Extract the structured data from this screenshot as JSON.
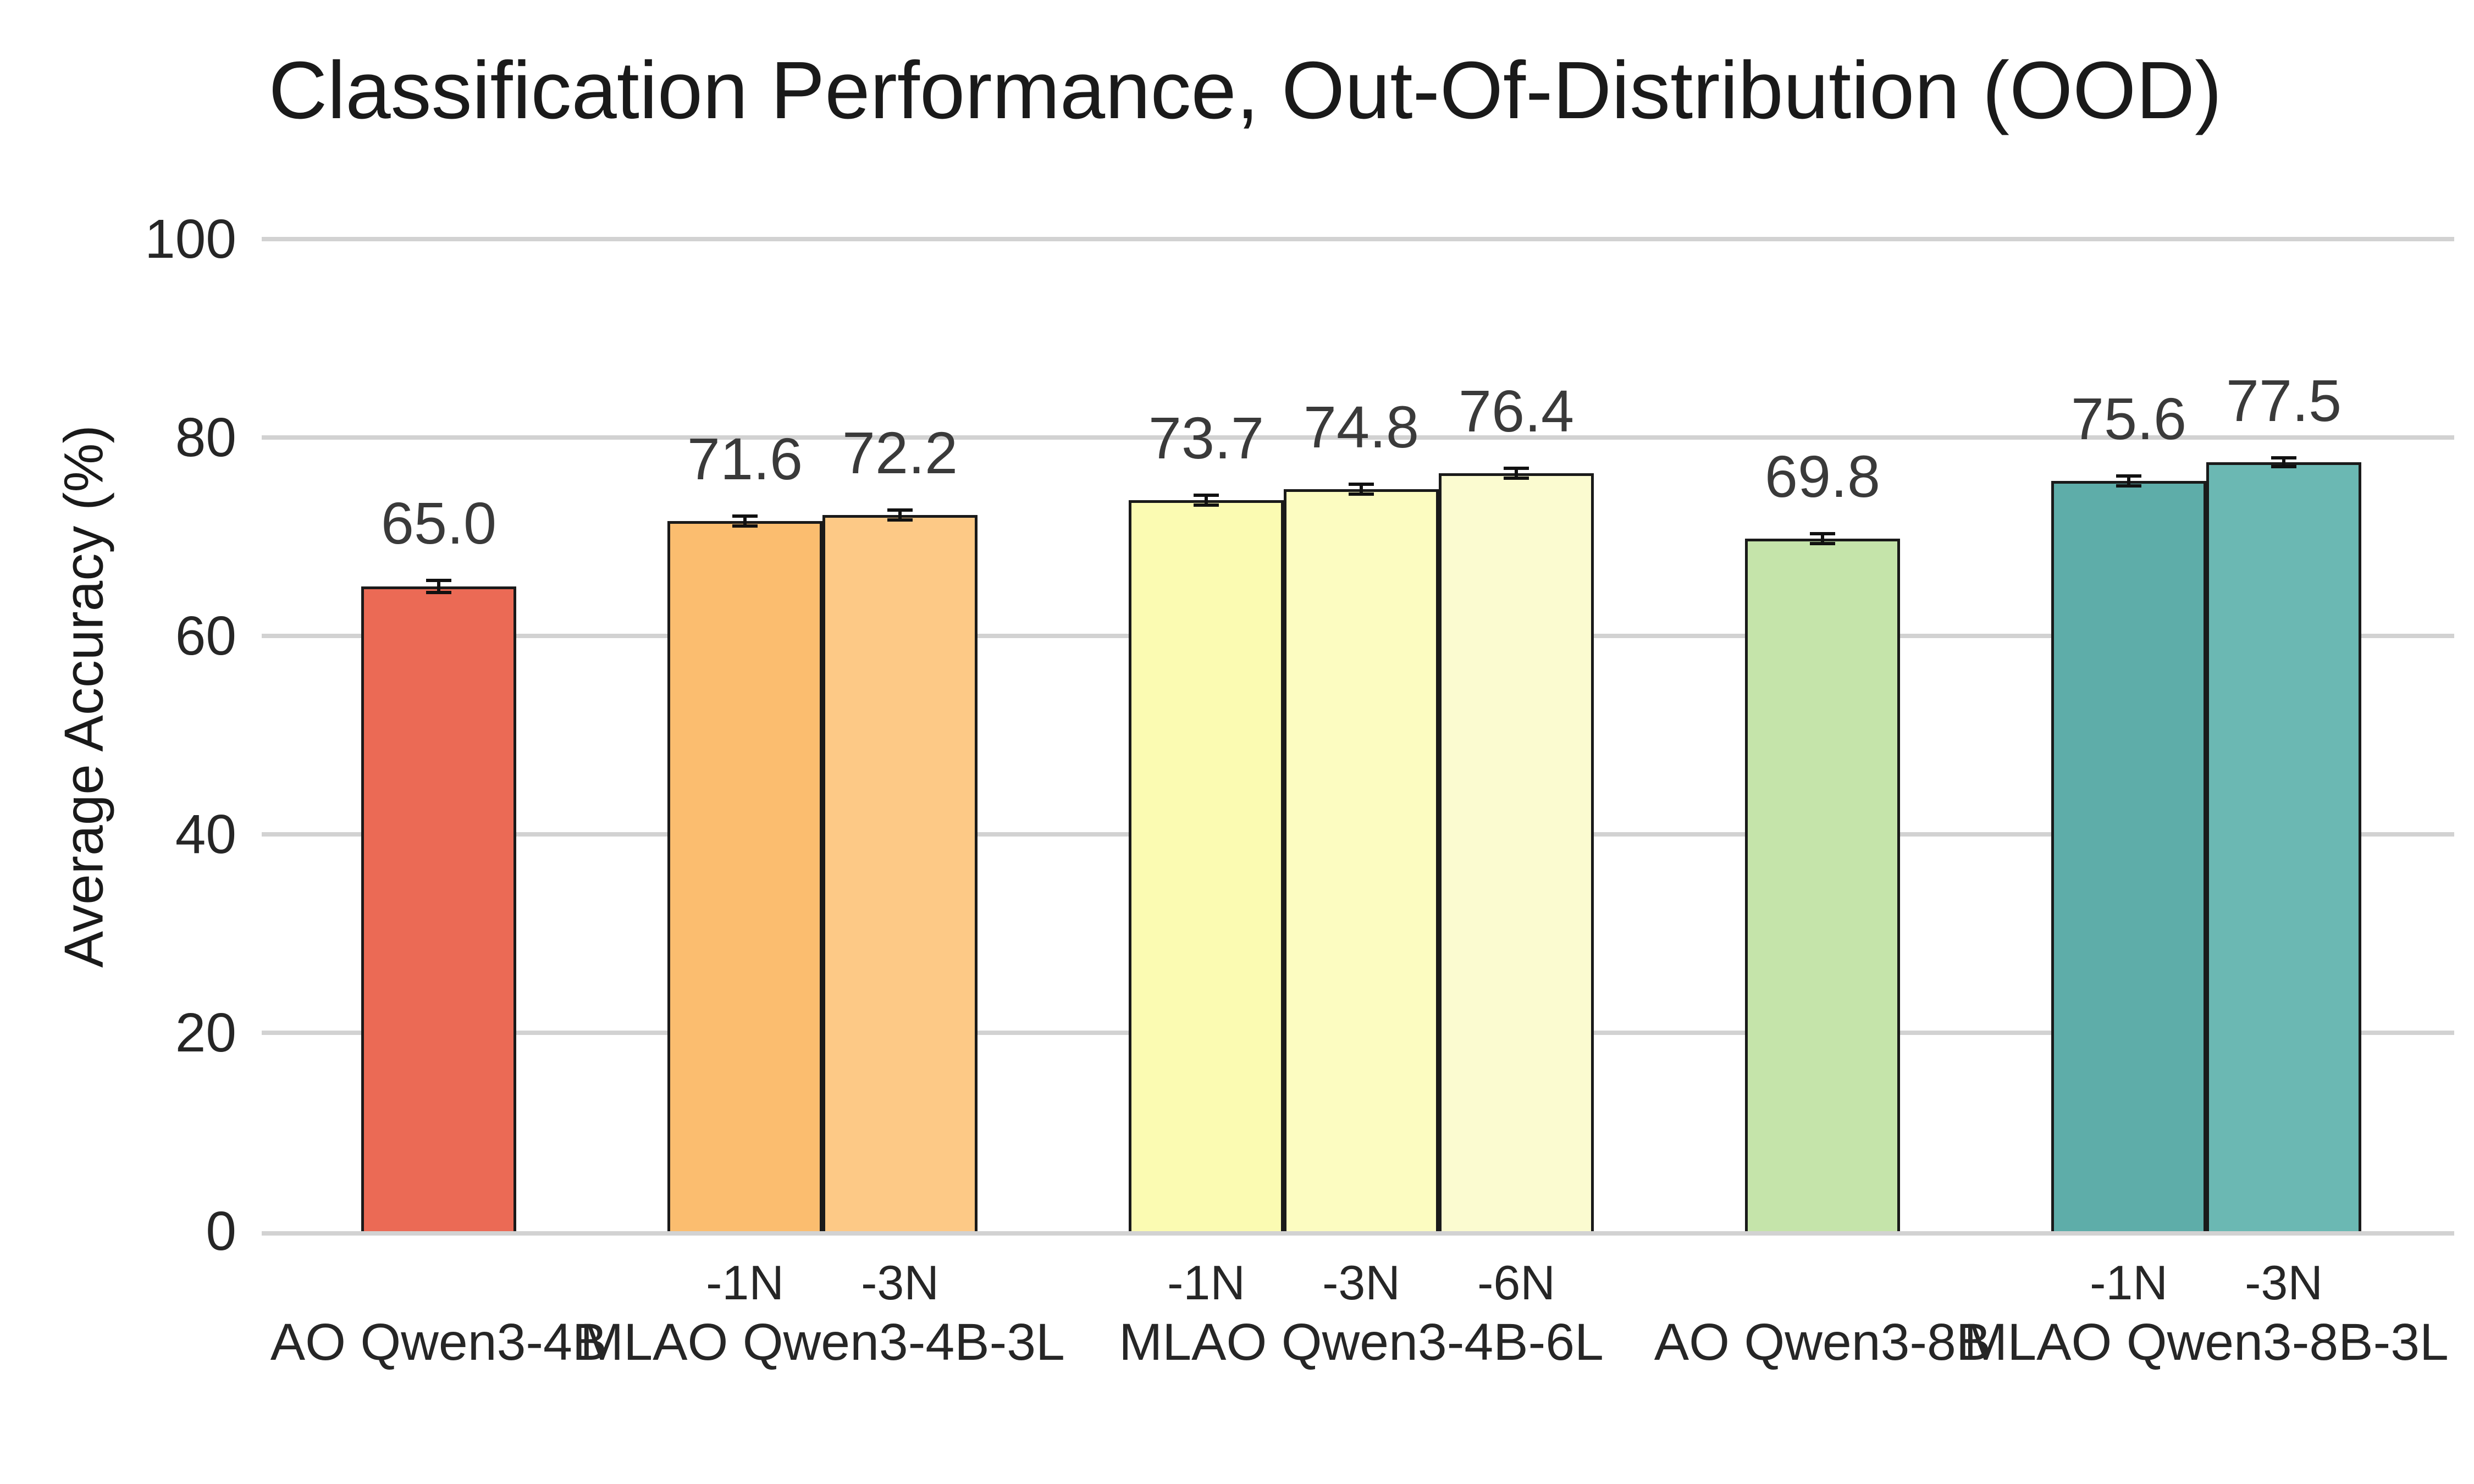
{
  "title": "Classification Performance, Out-Of-Distribution (OOD)",
  "chart_data": {
    "type": "bar",
    "title": "Classification Performance, Out-Of-Distribution (OOD)",
    "xlabel": "",
    "ylabel": "Average Accuracy (%)",
    "ylim": [
      0,
      100
    ],
    "yticks": [
      0,
      20,
      40,
      60,
      80,
      100
    ],
    "grid": "horizontal",
    "grid_color": "#d2d2d2",
    "bar_edge_color": "#1a1a1a",
    "error_bar_color": "#111111",
    "legend": "none",
    "groups": [
      {
        "label": "AO Qwen3-4B",
        "bars": [
          {
            "tick": "",
            "value": 65.0,
            "value_label": "65.0",
            "err": 0.6,
            "color": "#EB6A55"
          }
        ]
      },
      {
        "label": "MLAO Qwen3-4B-3L",
        "bars": [
          {
            "tick": "-1N",
            "value": 71.6,
            "value_label": "71.6",
            "err": 0.5,
            "color": "#FBBD6F"
          },
          {
            "tick": "-3N",
            "value": 72.2,
            "value_label": "72.2",
            "err": 0.5,
            "color": "#FDC986"
          }
        ]
      },
      {
        "label": "MLAO Qwen3-4B-6L",
        "bars": [
          {
            "tick": "-1N",
            "value": 73.7,
            "value_label": "73.7",
            "err": 0.5,
            "color": "#FBFBB2"
          },
          {
            "tick": "-3N",
            "value": 74.8,
            "value_label": "74.8",
            "err": 0.5,
            "color": "#FCFCC1"
          },
          {
            "tick": "-6N",
            "value": 76.4,
            "value_label": "76.4",
            "err": 0.5,
            "color": "#FBFBD0"
          }
        ]
      },
      {
        "label": "AO Qwen3-8B",
        "bars": [
          {
            "tick": "",
            "value": 69.8,
            "value_label": "69.8",
            "err": 0.5,
            "color": "#C5E4AA"
          }
        ]
      },
      {
        "label": "MLAO Qwen3-8B-3L",
        "bars": [
          {
            "tick": "-1N",
            "value": 75.6,
            "value_label": "75.6",
            "err": 0.5,
            "color": "#5EADA9"
          },
          {
            "tick": "-3N",
            "value": 77.5,
            "value_label": "77.5",
            "err": 0.4,
            "color": "#6BB8B3"
          }
        ]
      }
    ]
  }
}
